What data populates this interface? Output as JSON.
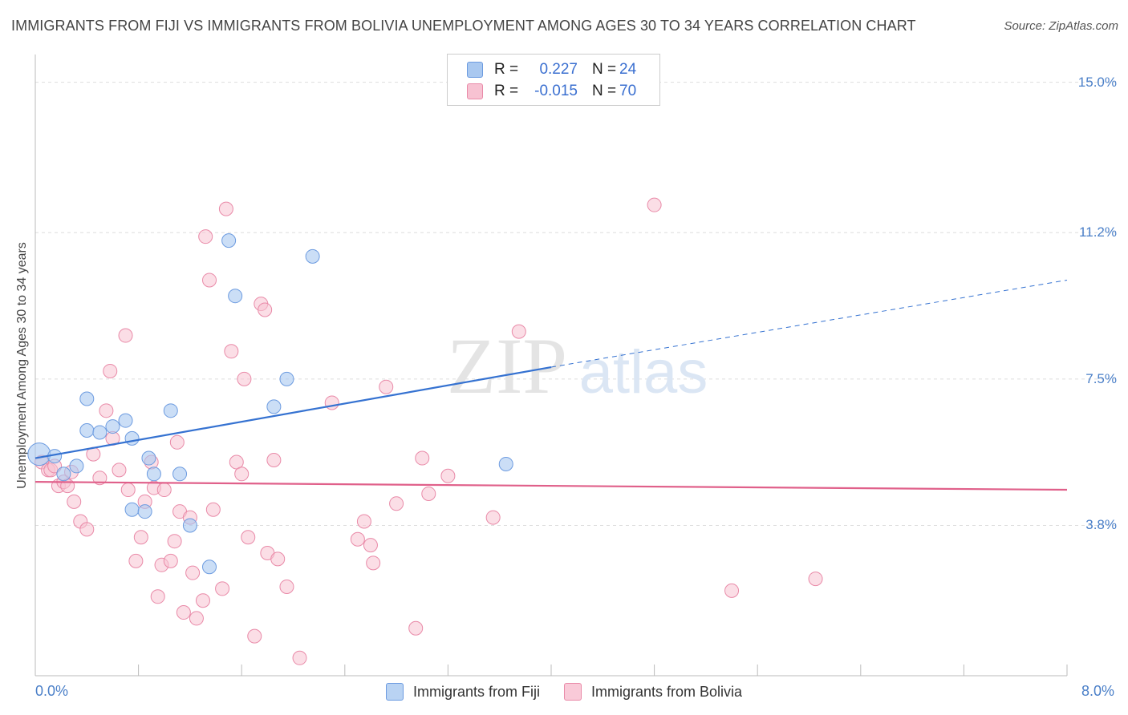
{
  "title": "IMMIGRANTS FROM FIJI VS IMMIGRANTS FROM BOLIVIA UNEMPLOYMENT AMONG AGES 30 TO 34 YEARS CORRELATION CHART",
  "source": "Source: ZipAtlas.com",
  "watermark": {
    "zip": "ZIP",
    "atlas": "atlas"
  },
  "legend_top": [
    {
      "label": "R =",
      "r": "0.227",
      "n_label": "N =",
      "n": "24",
      "color": "#a9c8f0",
      "border": "#6c9be0"
    },
    {
      "label": "R =",
      "r": "-0.015",
      "n_label": "N =",
      "n": "70",
      "color": "#f7c2d2",
      "border": "#e98aa8"
    }
  ],
  "legend_bottom": [
    {
      "label": "Immigrants from Fiji",
      "color": "#b9d3f3",
      "border": "#6c9be0"
    },
    {
      "label": "Immigrants from Bolivia",
      "color": "#f9cad8",
      "border": "#e98aa8"
    }
  ],
  "chart_data": {
    "type": "scatter",
    "title": "IMMIGRANTS FROM FIJI VS IMMIGRANTS FROM BOLIVIA UNEMPLOYMENT AMONG AGES 30 TO 34 YEARS CORRELATION CHART",
    "xlabel": "",
    "ylabel": "Unemployment Among Ages 30 to 34 years",
    "xlim": [
      0,
      8.0
    ],
    "ylim": [
      0,
      15.5
    ],
    "x_tick_labels": [
      "0.0%",
      "8.0%"
    ],
    "y_ticks": [
      3.8,
      7.5,
      11.2,
      15.0
    ],
    "y_tick_labels": [
      "3.8%",
      "7.5%",
      "11.2%",
      "15.0%"
    ],
    "grid": true,
    "legend_position": "top-center",
    "series": [
      {
        "name": "Immigrants from Fiji",
        "color": "#6c9be0",
        "fill": "#a9c8f0",
        "trend": {
          "x": [
            0.0,
            4.0
          ],
          "y": [
            5.5,
            7.8
          ],
          "dashed_extension_to": [
            8.0,
            10.0
          ],
          "color": "#3572d1"
        },
        "points": [
          [
            0.03,
            5.6
          ],
          [
            0.15,
            5.55
          ],
          [
            0.22,
            5.1
          ],
          [
            0.32,
            5.3
          ],
          [
            0.4,
            6.2
          ],
          [
            0.5,
            6.15
          ],
          [
            0.6,
            6.3
          ],
          [
            0.7,
            6.45
          ],
          [
            0.4,
            7.0
          ],
          [
            0.75,
            6.0
          ],
          [
            0.88,
            5.5
          ],
          [
            0.92,
            5.1
          ],
          [
            1.05,
            6.7
          ],
          [
            1.12,
            5.1
          ],
          [
            0.75,
            4.2
          ],
          [
            0.85,
            4.15
          ],
          [
            1.2,
            3.8
          ],
          [
            1.35,
            2.75
          ],
          [
            1.5,
            11.0
          ],
          [
            1.55,
            9.6
          ],
          [
            1.85,
            6.8
          ],
          [
            1.95,
            7.5
          ],
          [
            2.15,
            10.6
          ],
          [
            3.65,
            5.35
          ]
        ]
      },
      {
        "name": "Immigrants from Bolivia",
        "color": "#e98aa8",
        "fill": "#f7c2d2",
        "trend": {
          "x": [
            0.0,
            8.0
          ],
          "y": [
            4.9,
            4.7
          ],
          "color": "#e0608a"
        },
        "points": [
          [
            0.05,
            5.4
          ],
          [
            0.1,
            5.2
          ],
          [
            0.12,
            5.2
          ],
          [
            0.18,
            4.8
          ],
          [
            0.22,
            4.9
          ],
          [
            0.25,
            4.8
          ],
          [
            0.3,
            4.4
          ],
          [
            0.35,
            3.9
          ],
          [
            0.4,
            3.7
          ],
          [
            0.45,
            5.6
          ],
          [
            0.5,
            5.0
          ],
          [
            0.55,
            6.7
          ],
          [
            0.58,
            7.7
          ],
          [
            0.6,
            6.0
          ],
          [
            0.65,
            5.2
          ],
          [
            0.7,
            8.6
          ],
          [
            0.72,
            4.7
          ],
          [
            0.78,
            2.9
          ],
          [
            0.82,
            3.5
          ],
          [
            0.85,
            4.4
          ],
          [
            0.9,
            5.4
          ],
          [
            0.92,
            4.75
          ],
          [
            0.95,
            2.0
          ],
          [
            0.98,
            2.8
          ],
          [
            1.0,
            4.7
          ],
          [
            1.05,
            2.9
          ],
          [
            1.08,
            3.4
          ],
          [
            1.1,
            5.9
          ],
          [
            1.12,
            4.15
          ],
          [
            1.15,
            1.6
          ],
          [
            1.2,
            4.0
          ],
          [
            1.22,
            2.6
          ],
          [
            1.25,
            1.45
          ],
          [
            1.3,
            1.9
          ],
          [
            1.32,
            11.1
          ],
          [
            1.35,
            10.0
          ],
          [
            1.38,
            4.2
          ],
          [
            1.45,
            2.2
          ],
          [
            1.48,
            11.8
          ],
          [
            1.52,
            8.2
          ],
          [
            1.56,
            5.4
          ],
          [
            1.6,
            5.1
          ],
          [
            1.62,
            7.5
          ],
          [
            1.65,
            3.5
          ],
          [
            1.7,
            1.0
          ],
          [
            1.75,
            9.4
          ],
          [
            1.78,
            9.25
          ],
          [
            1.8,
            3.1
          ],
          [
            1.85,
            5.45
          ],
          [
            1.88,
            2.95
          ],
          [
            1.95,
            2.25
          ],
          [
            2.05,
            0.45
          ],
          [
            2.3,
            6.9
          ],
          [
            2.5,
            3.45
          ],
          [
            2.55,
            3.9
          ],
          [
            2.6,
            3.3
          ],
          [
            2.62,
            2.85
          ],
          [
            2.72,
            7.3
          ],
          [
            2.8,
            4.35
          ],
          [
            2.95,
            1.2
          ],
          [
            3.0,
            5.5
          ],
          [
            3.05,
            4.6
          ],
          [
            3.2,
            5.05
          ],
          [
            3.55,
            4.0
          ],
          [
            3.75,
            8.7
          ],
          [
            4.8,
            11.9
          ],
          [
            5.4,
            2.15
          ],
          [
            6.05,
            2.45
          ],
          [
            0.15,
            5.3
          ],
          [
            0.28,
            5.15
          ]
        ]
      }
    ]
  }
}
